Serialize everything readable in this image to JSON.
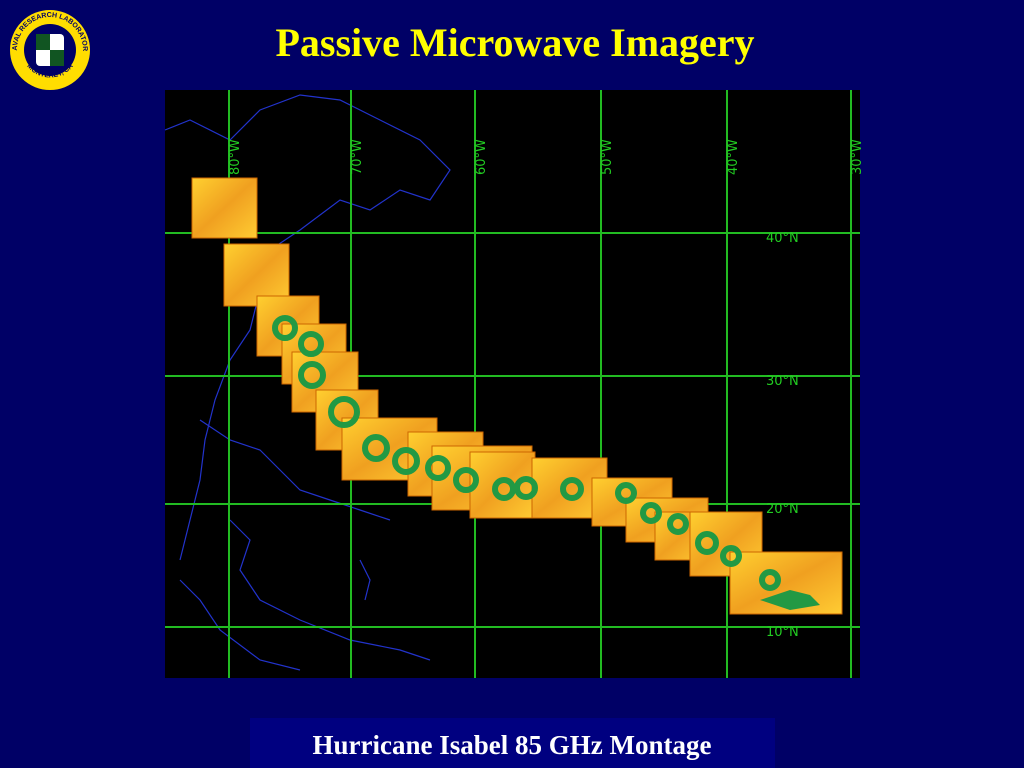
{
  "header": {
    "title": "Passive Microwave Imagery"
  },
  "logo": {
    "top_text": "NAVAL RESEARCH LABORATORY",
    "bottom_text": "MONTEREY, CA"
  },
  "map": {
    "longitude_labels": [
      "80°W",
      "70°W",
      "60°W",
      "50°W",
      "40°W",
      "30°W"
    ],
    "latitude_labels": [
      "40°N",
      "30°N",
      "20°N",
      "10°N"
    ]
  },
  "caption": "Hurricane Isabel 85 GHz Montage"
}
